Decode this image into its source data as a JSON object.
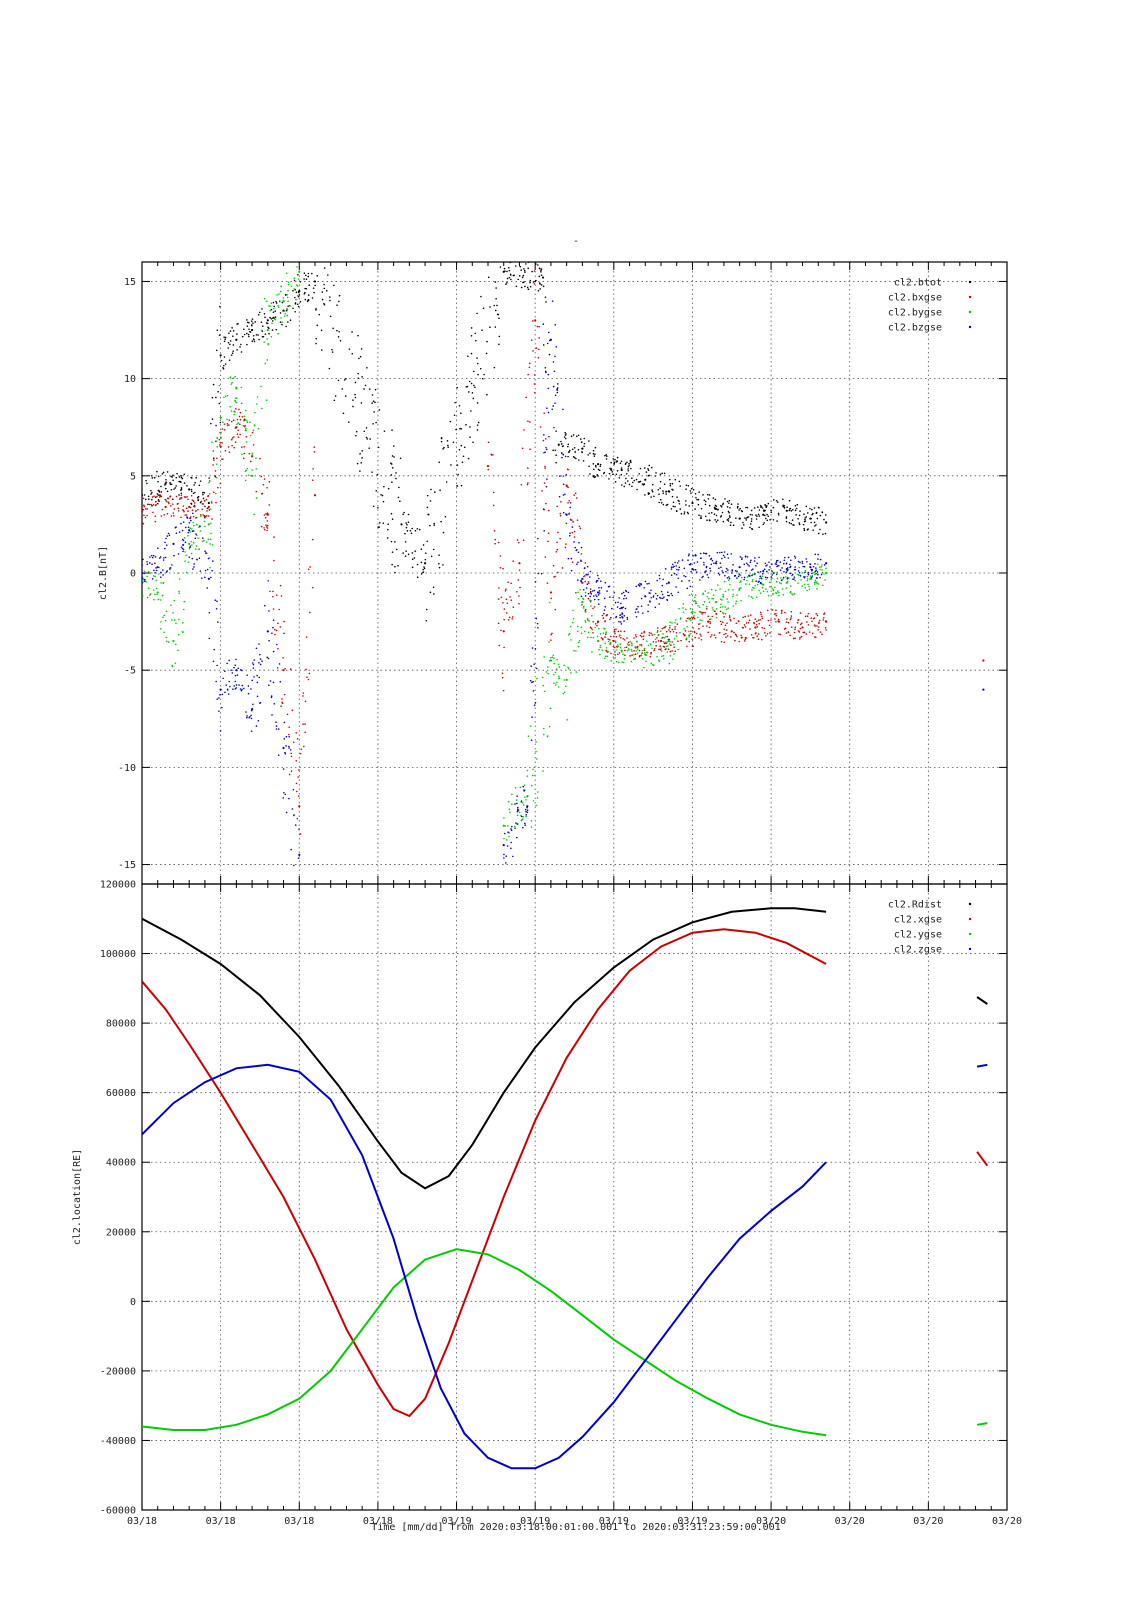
{
  "figure": {
    "top_marker": "-",
    "footer": "Time [mm/dd]  from 2020:03:18:00:01:00.001  to  2020:03:31:23:59:00.001"
  },
  "colors": {
    "black": "#000000",
    "red": "#cc0000",
    "green": "#00cc00",
    "blue": "#0000cc"
  },
  "chart_data": [
    {
      "type": "scatter",
      "title": "",
      "xlabel": "",
      "ylabel": "cl2.B[nT]",
      "ylim": [
        -16,
        16
      ],
      "x_unit": "index",
      "xlim": [
        0,
        11
      ],
      "x_tick_labels": [
        "03/18",
        "03/18",
        "03/18",
        "03/18",
        "03/19",
        "03/19",
        "03/19",
        "03/19",
        "03/20",
        "03/20",
        "03/20",
        "03/20"
      ],
      "yticks": [
        -15,
        -10,
        -5,
        0,
        5,
        10,
        15
      ],
      "grid": true,
      "legend_position": "top-right",
      "series": [
        {
          "name": "cl2.btot",
          "color": "#000000",
          "points": [
            [
              0,
              4.0
            ],
            [
              0.3,
              4.6
            ],
            [
              0.6,
              4.3
            ],
            [
              0.85,
              3.6
            ],
            [
              1.0,
              11.2
            ],
            [
              1.2,
              12.0
            ],
            [
              1.4,
              12.5
            ],
            [
              1.6,
              13.0
            ],
            [
              1.8,
              13.5
            ],
            [
              2.0,
              14.5
            ],
            [
              2.2,
              15.0
            ],
            [
              3.3,
              2.5
            ],
            [
              3.6,
              0.5
            ],
            [
              4.6,
              15.5
            ],
            [
              5.1,
              15.2
            ],
            [
              5.3,
              6.6
            ],
            [
              5.6,
              6.4
            ],
            [
              5.8,
              5.6
            ],
            [
              6.1,
              5.3
            ],
            [
              6.4,
              4.8
            ],
            [
              6.7,
              4.2
            ],
            [
              7.0,
              3.6
            ],
            [
              7.3,
              3.3
            ],
            [
              7.6,
              2.8
            ],
            [
              7.9,
              3.0
            ],
            [
              8.2,
              3.2
            ],
            [
              8.5,
              2.8
            ],
            [
              8.7,
              2.6
            ]
          ]
        },
        {
          "name": "cl2.bxgse",
          "color": "#cc0000",
          "points": [
            [
              0,
              3.2
            ],
            [
              0.3,
              3.4
            ],
            [
              0.6,
              3.4
            ],
            [
              0.85,
              3.4
            ],
            [
              1.0,
              6.5
            ],
            [
              1.2,
              7.5
            ],
            [
              1.4,
              6.0
            ],
            [
              1.6,
              3.0
            ],
            [
              1.8,
              -5.0
            ],
            [
              2.0,
              -12.0
            ],
            [
              2.2,
              4.0
            ],
            [
              4.4,
              5.5
            ],
            [
              4.6,
              -3.0
            ],
            [
              4.8,
              0.5
            ],
            [
              5.0,
              13.0
            ],
            [
              5.2,
              -1.0
            ],
            [
              5.4,
              4.5
            ],
            [
              5.6,
              -0.5
            ],
            [
              5.8,
              -2.5
            ],
            [
              6.0,
              -3.5
            ],
            [
              6.3,
              -3.8
            ],
            [
              6.6,
              -3.5
            ],
            [
              6.9,
              -3.2
            ],
            [
              7.2,
              -2.5
            ],
            [
              7.5,
              -3.0
            ],
            [
              7.8,
              -2.8
            ],
            [
              8.1,
              -2.5
            ],
            [
              8.4,
              -2.8
            ],
            [
              8.7,
              -2.5
            ],
            [
              10.7,
              -4.5
            ]
          ]
        },
        {
          "name": "cl2.bygse",
          "color": "#00cc00",
          "points": [
            [
              0,
              -0.5
            ],
            [
              0.2,
              -1.0
            ],
            [
              0.4,
              -3.5
            ],
            [
              0.6,
              1.5
            ],
            [
              0.85,
              2.5
            ],
            [
              1.0,
              8.0
            ],
            [
              1.2,
              9.5
            ],
            [
              1.4,
              5.0
            ],
            [
              1.6,
              12.5
            ],
            [
              1.8,
              14.0
            ],
            [
              2.0,
              15.5
            ],
            [
              4.6,
              -13.0
            ],
            [
              4.9,
              -11.5
            ],
            [
              5.2,
              -4.5
            ],
            [
              5.4,
              -5.5
            ],
            [
              5.6,
              -1.5
            ],
            [
              5.8,
              -3.5
            ],
            [
              6.1,
              -4.0
            ],
            [
              6.4,
              -4.2
            ],
            [
              6.7,
              -3.5
            ],
            [
              7.0,
              -2.0
            ],
            [
              7.3,
              -1.5
            ],
            [
              7.6,
              -0.8
            ],
            [
              7.9,
              -0.6
            ],
            [
              8.2,
              -0.5
            ],
            [
              8.5,
              -0.3
            ],
            [
              8.7,
              0.0
            ]
          ]
        },
        {
          "name": "cl2.bzgse",
          "color": "#0000cc",
          "points": [
            [
              0,
              0.0
            ],
            [
              0.2,
              0.3
            ],
            [
              0.4,
              1.5
            ],
            [
              0.6,
              2.2
            ],
            [
              0.85,
              -0.3
            ],
            [
              1.0,
              -6.0
            ],
            [
              1.2,
              -5.0
            ],
            [
              1.4,
              -7.0
            ],
            [
              1.6,
              -3.0
            ],
            [
              1.8,
              -9.0
            ],
            [
              2.0,
              -14.5
            ],
            [
              4.6,
              -14.0
            ],
            [
              4.9,
              -12.0
            ],
            [
              5.2,
              12.0
            ],
            [
              5.4,
              3.0
            ],
            [
              5.6,
              -0.3
            ],
            [
              5.8,
              -1.0
            ],
            [
              6.1,
              -1.8
            ],
            [
              6.4,
              -1.2
            ],
            [
              6.7,
              -0.5
            ],
            [
              7.0,
              0.2
            ],
            [
              7.3,
              0.5
            ],
            [
              7.6,
              0.3
            ],
            [
              7.9,
              0.1
            ],
            [
              8.2,
              0.2
            ],
            [
              8.5,
              0.3
            ],
            [
              8.7,
              0.5
            ],
            [
              10.7,
              -6.0
            ]
          ]
        }
      ]
    },
    {
      "type": "line",
      "title": "",
      "xlabel": "",
      "ylabel": "cl2.location[RE]",
      "ylim": [
        -60000,
        120000
      ],
      "x_unit": "index",
      "xlim": [
        0,
        11
      ],
      "x_tick_labels": [
        "03/18",
        "03/18",
        "03/18",
        "03/18",
        "03/19",
        "03/19",
        "03/19",
        "03/19",
        "03/20",
        "03/20",
        "03/20",
        "03/20"
      ],
      "yticks": [
        -60000,
        -40000,
        -20000,
        0,
        20000,
        40000,
        60000,
        80000,
        100000,
        120000
      ],
      "grid": true,
      "legend_position": "top-right",
      "series": [
        {
          "name": "cl2.Rdist",
          "color": "#000000",
          "points": [
            [
              0,
              110000
            ],
            [
              0.5,
              104000
            ],
            [
              1.0,
              97000
            ],
            [
              1.5,
              88000
            ],
            [
              2.0,
              76000
            ],
            [
              2.5,
              62000
            ],
            [
              3.0,
              46000
            ],
            [
              3.3,
              37000
            ],
            [
              3.6,
              32500
            ],
            [
              3.9,
              36000
            ],
            [
              4.2,
              45000
            ],
            [
              4.6,
              60000
            ],
            [
              5.0,
              73000
            ],
            [
              5.5,
              86000
            ],
            [
              6.0,
              96000
            ],
            [
              6.5,
              104000
            ],
            [
              7.0,
              109000
            ],
            [
              7.5,
              112000
            ],
            [
              8.0,
              113000
            ],
            [
              8.3,
              113000
            ],
            [
              8.7,
              112000
            ]
          ],
          "extra_segment": [
            [
              10.62,
              87500
            ],
            [
              10.75,
              85500
            ]
          ]
        },
        {
          "name": "cl2.xgse",
          "color": "#cc0000",
          "points": [
            [
              0,
              92000
            ],
            [
              0.3,
              84000
            ],
            [
              0.6,
              74000
            ],
            [
              1.0,
              60000
            ],
            [
              1.4,
              45000
            ],
            [
              1.8,
              30000
            ],
            [
              2.2,
              12000
            ],
            [
              2.6,
              -8000
            ],
            [
              3.0,
              -24000
            ],
            [
              3.2,
              -31000
            ],
            [
              3.4,
              -33000
            ],
            [
              3.6,
              -28000
            ],
            [
              3.9,
              -12000
            ],
            [
              4.2,
              6000
            ],
            [
              4.6,
              30000
            ],
            [
              5.0,
              52000
            ],
            [
              5.4,
              70000
            ],
            [
              5.8,
              84000
            ],
            [
              6.2,
              95000
            ],
            [
              6.6,
              102000
            ],
            [
              7.0,
              106000
            ],
            [
              7.4,
              107000
            ],
            [
              7.8,
              106000
            ],
            [
              8.2,
              103000
            ],
            [
              8.7,
              97000
            ]
          ],
          "extra_segment": [
            [
              10.62,
              43000
            ],
            [
              10.75,
              39000
            ]
          ]
        },
        {
          "name": "cl2.ygse",
          "color": "#00cc00",
          "points": [
            [
              0,
              -36000
            ],
            [
              0.4,
              -37000
            ],
            [
              0.8,
              -37000
            ],
            [
              1.2,
              -35500
            ],
            [
              1.6,
              -32500
            ],
            [
              2.0,
              -28000
            ],
            [
              2.4,
              -20000
            ],
            [
              2.8,
              -8000
            ],
            [
              3.2,
              4000
            ],
            [
              3.6,
              12000
            ],
            [
              4.0,
              15000
            ],
            [
              4.4,
              13500
            ],
            [
              4.8,
              9000
            ],
            [
              5.2,
              3000
            ],
            [
              5.6,
              -4000
            ],
            [
              6.0,
              -11000
            ],
            [
              6.4,
              -17000
            ],
            [
              6.8,
              -23000
            ],
            [
              7.2,
              -28000
            ],
            [
              7.6,
              -32500
            ],
            [
              8.0,
              -35500
            ],
            [
              8.4,
              -37500
            ],
            [
              8.7,
              -38500
            ]
          ],
          "extra_segment": [
            [
              10.62,
              -35500
            ],
            [
              10.75,
              -35000
            ]
          ]
        },
        {
          "name": "cl2.zgse",
          "color": "#0000cc",
          "points": [
            [
              0,
              48000
            ],
            [
              0.4,
              57000
            ],
            [
              0.8,
              63000
            ],
            [
              1.2,
              67000
            ],
            [
              1.6,
              68000
            ],
            [
              2.0,
              66000
            ],
            [
              2.4,
              58000
            ],
            [
              2.8,
              42000
            ],
            [
              3.2,
              18000
            ],
            [
              3.5,
              -5000
            ],
            [
              3.8,
              -25000
            ],
            [
              4.1,
              -38000
            ],
            [
              4.4,
              -45000
            ],
            [
              4.7,
              -48000
            ],
            [
              5.0,
              -48000
            ],
            [
              5.3,
              -45000
            ],
            [
              5.6,
              -39000
            ],
            [
              6.0,
              -29000
            ],
            [
              6.4,
              -17000
            ],
            [
              6.8,
              -5000
            ],
            [
              7.2,
              7000
            ],
            [
              7.6,
              18000
            ],
            [
              8.0,
              26000
            ],
            [
              8.4,
              33000
            ],
            [
              8.7,
              40000
            ]
          ],
          "extra_segment": [
            [
              10.62,
              67500
            ],
            [
              10.75,
              68000
            ]
          ]
        }
      ]
    }
  ]
}
